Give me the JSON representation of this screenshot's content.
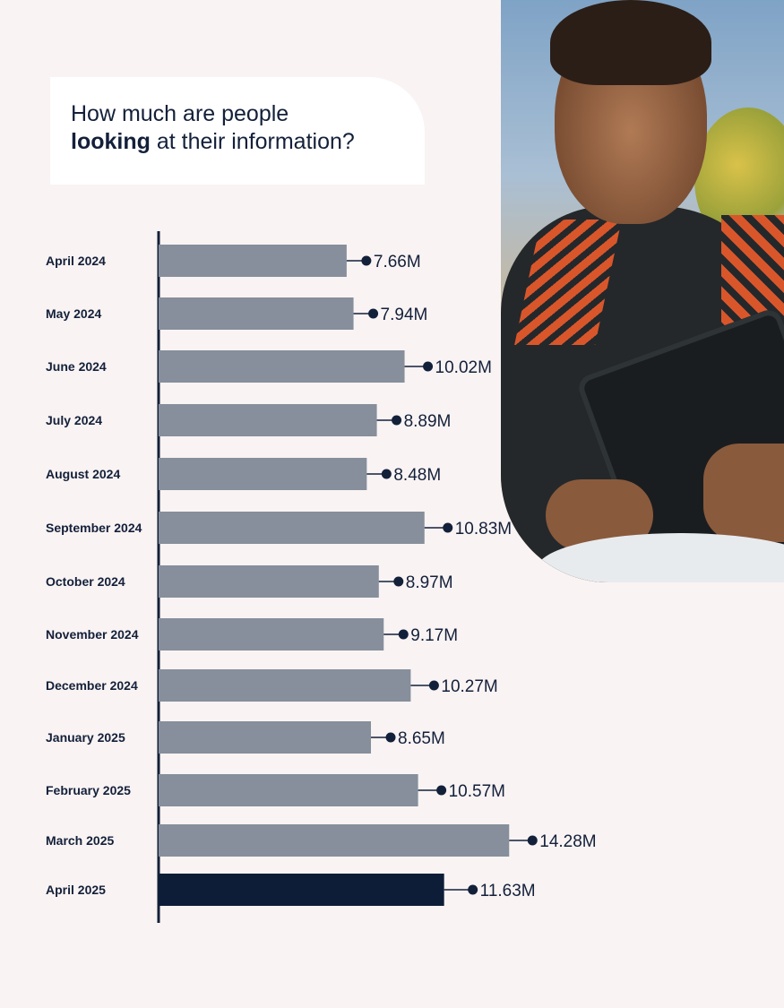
{
  "title": {
    "line1": "How much are people",
    "line2_bold": "looking",
    "line2_rest": " at their information?"
  },
  "colors": {
    "background": "#f9f3f3",
    "bar": "#868f9b",
    "bar_highlight": "#0d1d37",
    "text": "#13203a"
  },
  "chart_data": {
    "type": "bar",
    "orientation": "horizontal",
    "title": "How much are people looking at their information?",
    "categories": [
      "April 2024",
      "May 2024",
      "June 2024",
      "July 2024",
      "August 2024",
      "September 2024",
      "October 2024",
      "November 2024",
      "December  2024",
      "January  2025",
      "February  2025",
      "March  2025",
      "April 2025"
    ],
    "values": [
      7.66,
      7.94,
      10.02,
      8.89,
      8.48,
      10.83,
      8.97,
      9.17,
      10.27,
      8.65,
      10.57,
      14.28,
      11.63
    ],
    "labels": [
      "7.66M",
      "7.94M",
      "10.02M",
      "8.89M",
      "8.48M",
      "10.83M",
      "8.97M",
      "9.17M",
      "10.27M",
      "8.65M",
      "10.57M",
      "14.28M",
      "11.63M"
    ],
    "highlight_index": 12,
    "grid": false,
    "legend": "none"
  }
}
